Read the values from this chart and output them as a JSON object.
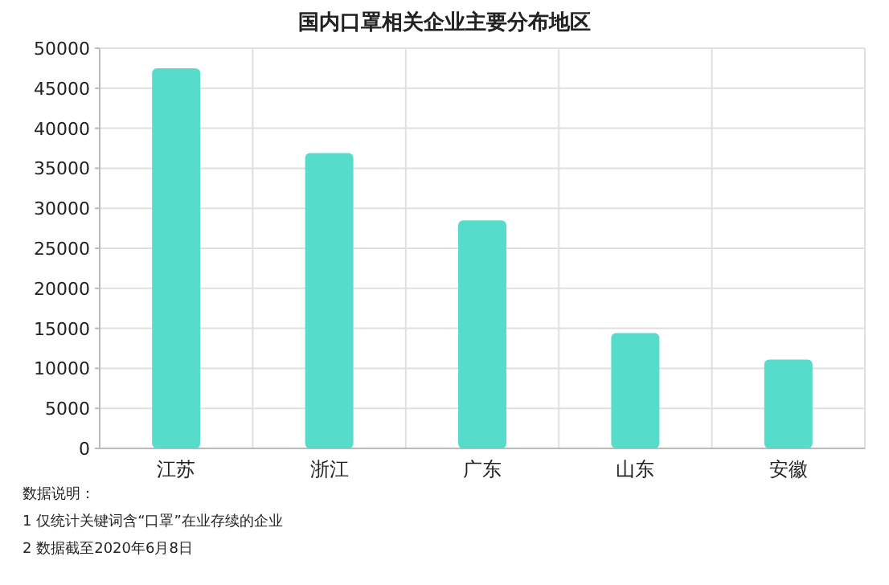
{
  "chart_data": {
    "type": "bar",
    "title": "国内口罩相关企业主要分布地区",
    "categories": [
      "江苏",
      "浙江",
      "广东",
      "山东",
      "安徽"
    ],
    "values": [
      47500,
      36900,
      28500,
      14400,
      11100
    ],
    "color": "#56dccb",
    "ylim": [
      0,
      50000
    ],
    "yticks": [
      0,
      5000,
      10000,
      15000,
      20000,
      25000,
      30000,
      35000,
      40000,
      45000,
      50000
    ],
    "grid": true,
    "annotations": [
      "数据说明：",
      "1 仅统计关键词含“口罩”在业存续的企业",
      "2 数据截至2020年6月8日"
    ]
  }
}
